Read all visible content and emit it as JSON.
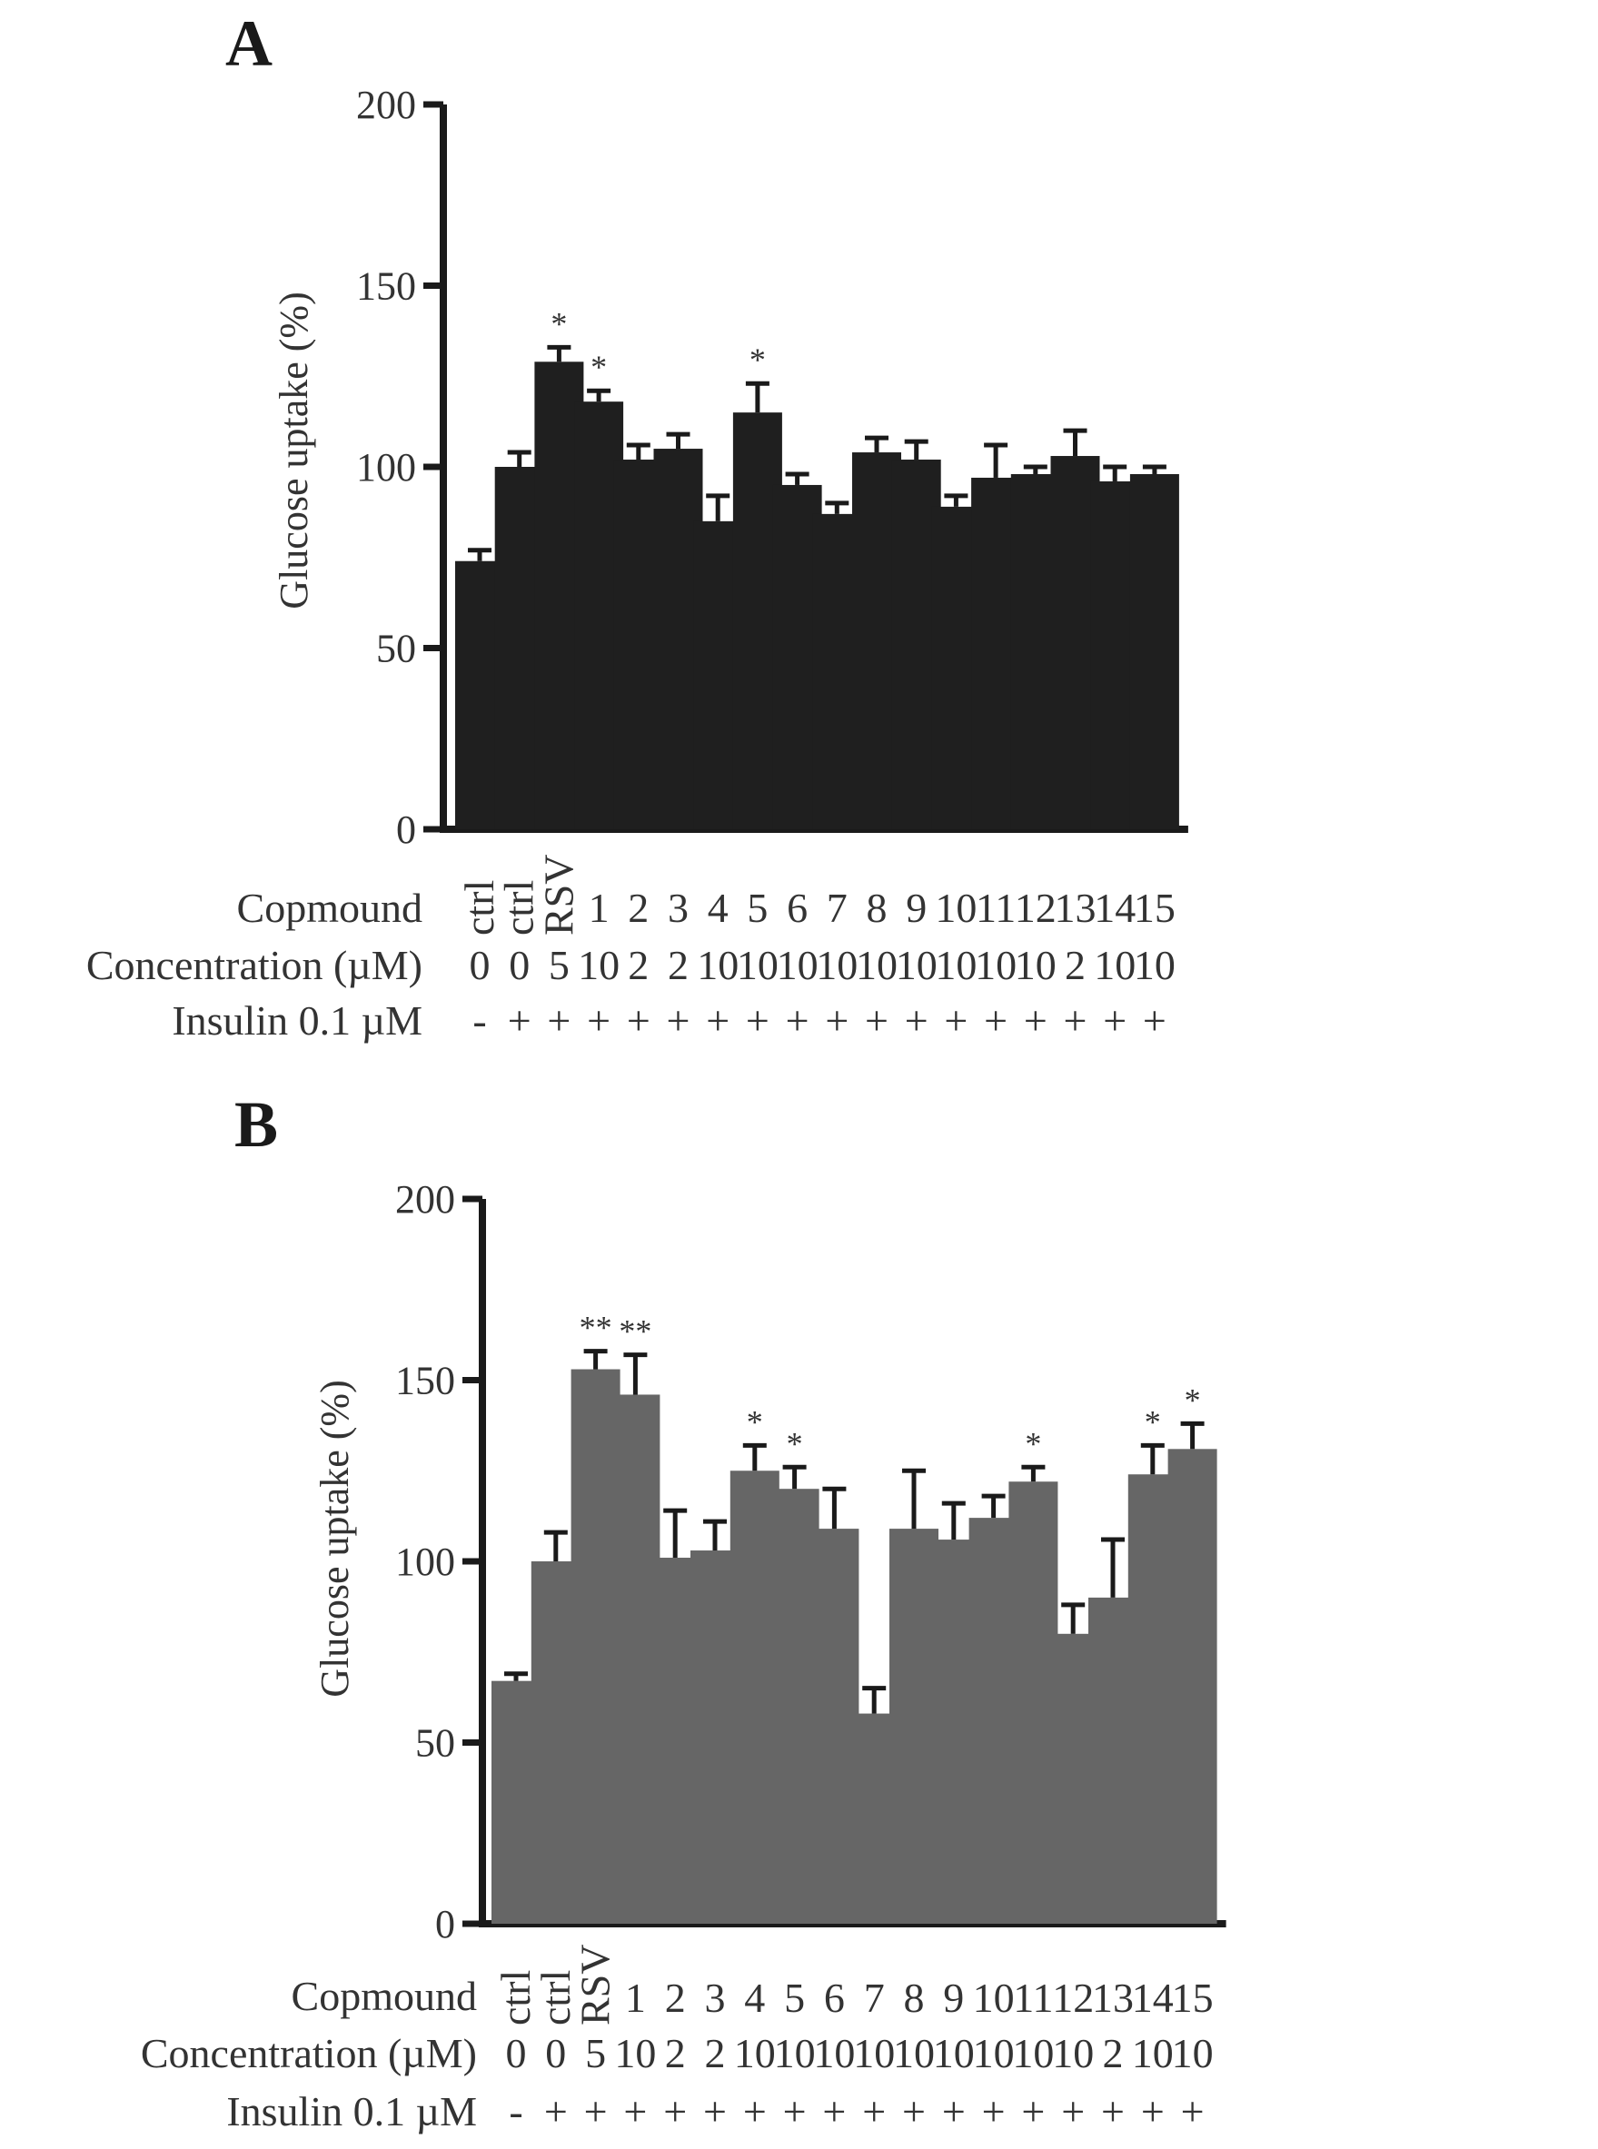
{
  "chart_data": [
    {
      "type": "bar",
      "panel_label": "A",
      "ylabel": "Glucose uptake (%)",
      "ylim": [
        0,
        200
      ],
      "yticks": [
        "0",
        "50",
        "100",
        "150",
        "200"
      ],
      "bar_color": "#1f1f1f",
      "categories": [
        "ctrl",
        "ctrl",
        "RSV",
        "1",
        "2",
        "3",
        "4",
        "5",
        "6",
        "7",
        "8",
        "9",
        "10",
        "11",
        "12",
        "13",
        "14",
        "15"
      ],
      "values": [
        74,
        100,
        129,
        118,
        102,
        105,
        85,
        115,
        95,
        87,
        104,
        102,
        89,
        97,
        98,
        103,
        96,
        98
      ],
      "errors": [
        3,
        4,
        4,
        3,
        4,
        4,
        7,
        8,
        3,
        3,
        4,
        5,
        3,
        9,
        2,
        7,
        4,
        2
      ],
      "significance": [
        "",
        "",
        "*",
        "*",
        "",
        "",
        "",
        "*",
        "",
        "",
        "",
        "",
        "",
        "",
        "",
        "",
        "",
        ""
      ],
      "row_labels": {
        "compound": "Copmound",
        "concentration": "Concentration (µM)",
        "insulin": "Insulin 0.1 µM"
      },
      "concentrations": [
        "0",
        "0",
        "5",
        "10",
        "2",
        "2",
        "10",
        "10",
        "10",
        "10",
        "10",
        "10",
        "10",
        "10",
        "10",
        "2",
        "10",
        "10"
      ],
      "insulin": [
        "-",
        "+",
        "+",
        "+",
        "+",
        "+",
        "+",
        "+",
        "+",
        "+",
        "+",
        "+",
        "+",
        "+",
        "+",
        "+",
        "+",
        "+"
      ]
    },
    {
      "type": "bar",
      "panel_label": "B",
      "ylabel": "Glucose uptake (%)",
      "ylim": [
        0,
        200
      ],
      "yticks": [
        "0",
        "50",
        "100",
        "150",
        "200"
      ],
      "bar_color": "#666666",
      "categories": [
        "ctrl",
        "ctrl",
        "RSV",
        "1",
        "2",
        "3",
        "4",
        "5",
        "6",
        "7",
        "8",
        "9",
        "10",
        "11",
        "12",
        "13",
        "14",
        "15"
      ],
      "values": [
        67,
        100,
        153,
        146,
        101,
        103,
        125,
        120,
        109,
        58,
        109,
        106,
        112,
        122,
        80,
        90,
        124,
        131
      ],
      "errors": [
        2,
        8,
        5,
        11,
        13,
        8,
        7,
        6,
        11,
        7,
        16,
        10,
        6,
        4,
        8,
        16,
        8,
        7
      ],
      "significance": [
        "",
        "",
        "**",
        "**",
        "",
        "",
        "*",
        "*",
        "",
        "",
        "",
        "",
        "",
        "*",
        "",
        "",
        "*",
        "*"
      ],
      "row_labels": {
        "compound": "Copmound",
        "concentration": "Concentration (µM)",
        "insulin": "Insulin 0.1 µM"
      },
      "concentrations": [
        "0",
        "0",
        "5",
        "10",
        "2",
        "2",
        "10",
        "10",
        "10",
        "10",
        "10",
        "10",
        "10",
        "10",
        "10",
        "2",
        "10",
        "10"
      ],
      "insulin": [
        "-",
        "+",
        "+",
        "+",
        "+",
        "+",
        "+",
        "+",
        "+",
        "+",
        "+",
        "+",
        "+",
        "+",
        "+",
        "+",
        "+",
        "+"
      ]
    }
  ]
}
